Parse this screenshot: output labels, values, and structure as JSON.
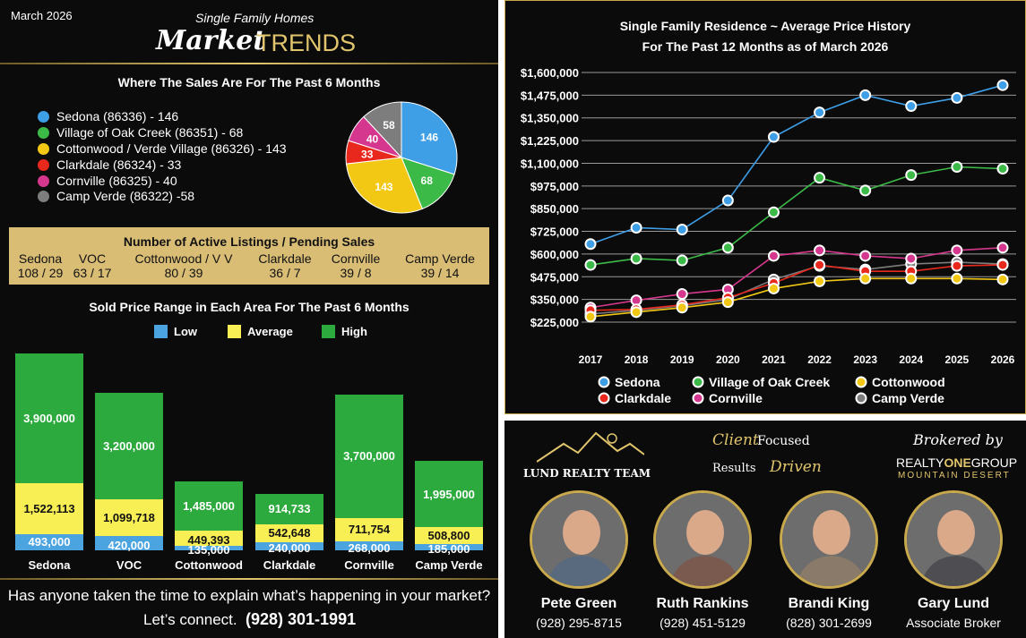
{
  "header": {
    "date": "March 2026",
    "subtitle": "Single Family Homes",
    "title_script": "Market",
    "title_caps": "TRENDS"
  },
  "colors": {
    "sedona": "#3e9ee6",
    "voc": "#3cba47",
    "cottonwood": "#f2c815",
    "clarkdale": "#e8281d",
    "cornville": "#d6378e",
    "campverde": "#7d7d7d",
    "gold": "#d9bd75",
    "bar_low": "#4ba3e0",
    "bar_avg": "#f8ef55",
    "bar_high": "#2daa3e"
  },
  "pie_section": {
    "title": "Where The Sales Are For The Past 6 Months",
    "legend": [
      "Sedona (86336) - 146",
      "Village of Oak Creek (86351) - 68",
      "Cottonwood / Verde Village (86326) - 143",
      "Clarkdale (86324) - 33",
      "Cornville (86325) -  40",
      "Camp Verde (86322) -58"
    ]
  },
  "listings": {
    "title": "Number of Active Listings / Pending Sales",
    "areas": [
      {
        "name": "Sedona",
        "value": "108 / 29"
      },
      {
        "name": "VOC",
        "value": "63 / 17"
      },
      {
        "name": "Cottonwood / V V",
        "value": "80 / 39"
      },
      {
        "name": "Clarkdale",
        "value": "36 / 7"
      },
      {
        "name": "Cornville",
        "value": "39 / 8"
      },
      {
        "name": "Camp Verde",
        "value": "39 / 14"
      }
    ]
  },
  "bar_section": {
    "title": "Sold Price Range in Each Area For The Past 6 Months",
    "legend": [
      "Low",
      "Average",
      "High"
    ]
  },
  "chart_data": [
    {
      "type": "pie",
      "categories": [
        "Sedona",
        "Village of Oak Creek",
        "Cottonwood / Verde Village",
        "Clarkdale",
        "Cornville",
        "Camp Verde"
      ],
      "values": [
        146,
        68,
        143,
        33,
        40,
        58
      ],
      "title": "Where The Sales Are For The Past 6 Months"
    },
    {
      "type": "bar",
      "title": "Sold Price Range in Each Area For The Past 6 Months",
      "categories": [
        "Sedona",
        "VOC",
        "Cottonwood",
        "Clarkdale",
        "Cornville",
        "Camp Verde"
      ],
      "series": [
        {
          "name": "Low",
          "values": [
            493000,
            420000,
            135000,
            240000,
            268000,
            185000
          ]
        },
        {
          "name": "Average",
          "values": [
            1522113,
            1099718,
            449393,
            542648,
            711754,
            508800
          ]
        },
        {
          "name": "High",
          "values": [
            3900000,
            3200000,
            1485000,
            914733,
            3700000,
            1995000
          ]
        }
      ],
      "value_labels": {
        "Low": [
          "493,000",
          "420,000",
          "135,000",
          "240,000",
          "268,000",
          "185,000"
        ],
        "Average": [
          "1,522,113",
          "1,099,718",
          "449,393",
          "542,648",
          "711,754",
          "508,800"
        ],
        "High": [
          "3,900,000",
          "3,200,000",
          "1,485,000",
          "914,733",
          "3,700,000",
          "1,995,000"
        ]
      }
    },
    {
      "type": "line",
      "title": "Single Family Residence ~ Average  Price History For The Past 12 Months as of March 2026",
      "x": [
        2017,
        2018,
        2019,
        2020,
        2021,
        2022,
        2023,
        2024,
        2025,
        2026
      ],
      "ylim": [
        225000,
        1600000
      ],
      "yticks": [
        "$1,600,000",
        "$1,475,000",
        "$1,350,000",
        "$1,225,000",
        "$1,100,000",
        "$975,000",
        "$850,000",
        "$725,000",
        "$600,000",
        "$475,000",
        "$350,000",
        "$225,000"
      ],
      "series": [
        {
          "name": "Sedona",
          "values": [
            655000,
            745000,
            735000,
            895000,
            1245000,
            1380000,
            1475000,
            1415000,
            1460000,
            1530000
          ]
        },
        {
          "name": "Village of Oak Creek",
          "values": [
            540000,
            575000,
            565000,
            635000,
            830000,
            1020000,
            950000,
            1035000,
            1080000,
            1070000
          ]
        },
        {
          "name": "Cottonwood",
          "values": [
            255000,
            280000,
            305000,
            335000,
            410000,
            450000,
            465000,
            465000,
            465000,
            460000
          ]
        },
        {
          "name": "Clarkdale",
          "values": [
            290000,
            295000,
            320000,
            360000,
            440000,
            540000,
            505000,
            505000,
            535000,
            540000
          ]
        },
        {
          "name": "Cornville",
          "values": [
            305000,
            345000,
            380000,
            405000,
            590000,
            620000,
            590000,
            575000,
            620000,
            635000
          ]
        },
        {
          "name": "Camp Verde",
          "values": [
            270000,
            290000,
            315000,
            350000,
            460000,
            535000,
            515000,
            545000,
            555000,
            545000
          ]
        }
      ]
    }
  ],
  "line_section": {
    "title_line1": "Single Family Residence ~ Average  Price History",
    "title_line2": "For The Past 12 Months as of March 2026"
  },
  "footer": {
    "question": "Has anyone taken the time to explain what’s happening in your market?",
    "connect": "Let’s connect.",
    "phone": "(928) 301-1991"
  },
  "branding": {
    "team": "LUND REALTY TEAM",
    "client_focused_1": "Client",
    "client_focused_2": "Focused",
    "results_1": "Results",
    "results_2": "Driven",
    "brokered_by": "Brokered by",
    "brokerage_1": "REALTY",
    "brokerage_2": "ONE",
    "brokerage_3": "GROUP",
    "brokerage_sub": "MOUNTAIN DESERT"
  },
  "agents": [
    {
      "name": "Pete Green",
      "phone": "(928) 295-8715"
    },
    {
      "name": "Ruth Rankins",
      "phone": "(928) 451-5129"
    },
    {
      "name": "Brandi King",
      "phone": "(828) 301-2699"
    },
    {
      "name": "Gary Lund",
      "phone": "Associate Broker"
    }
  ]
}
